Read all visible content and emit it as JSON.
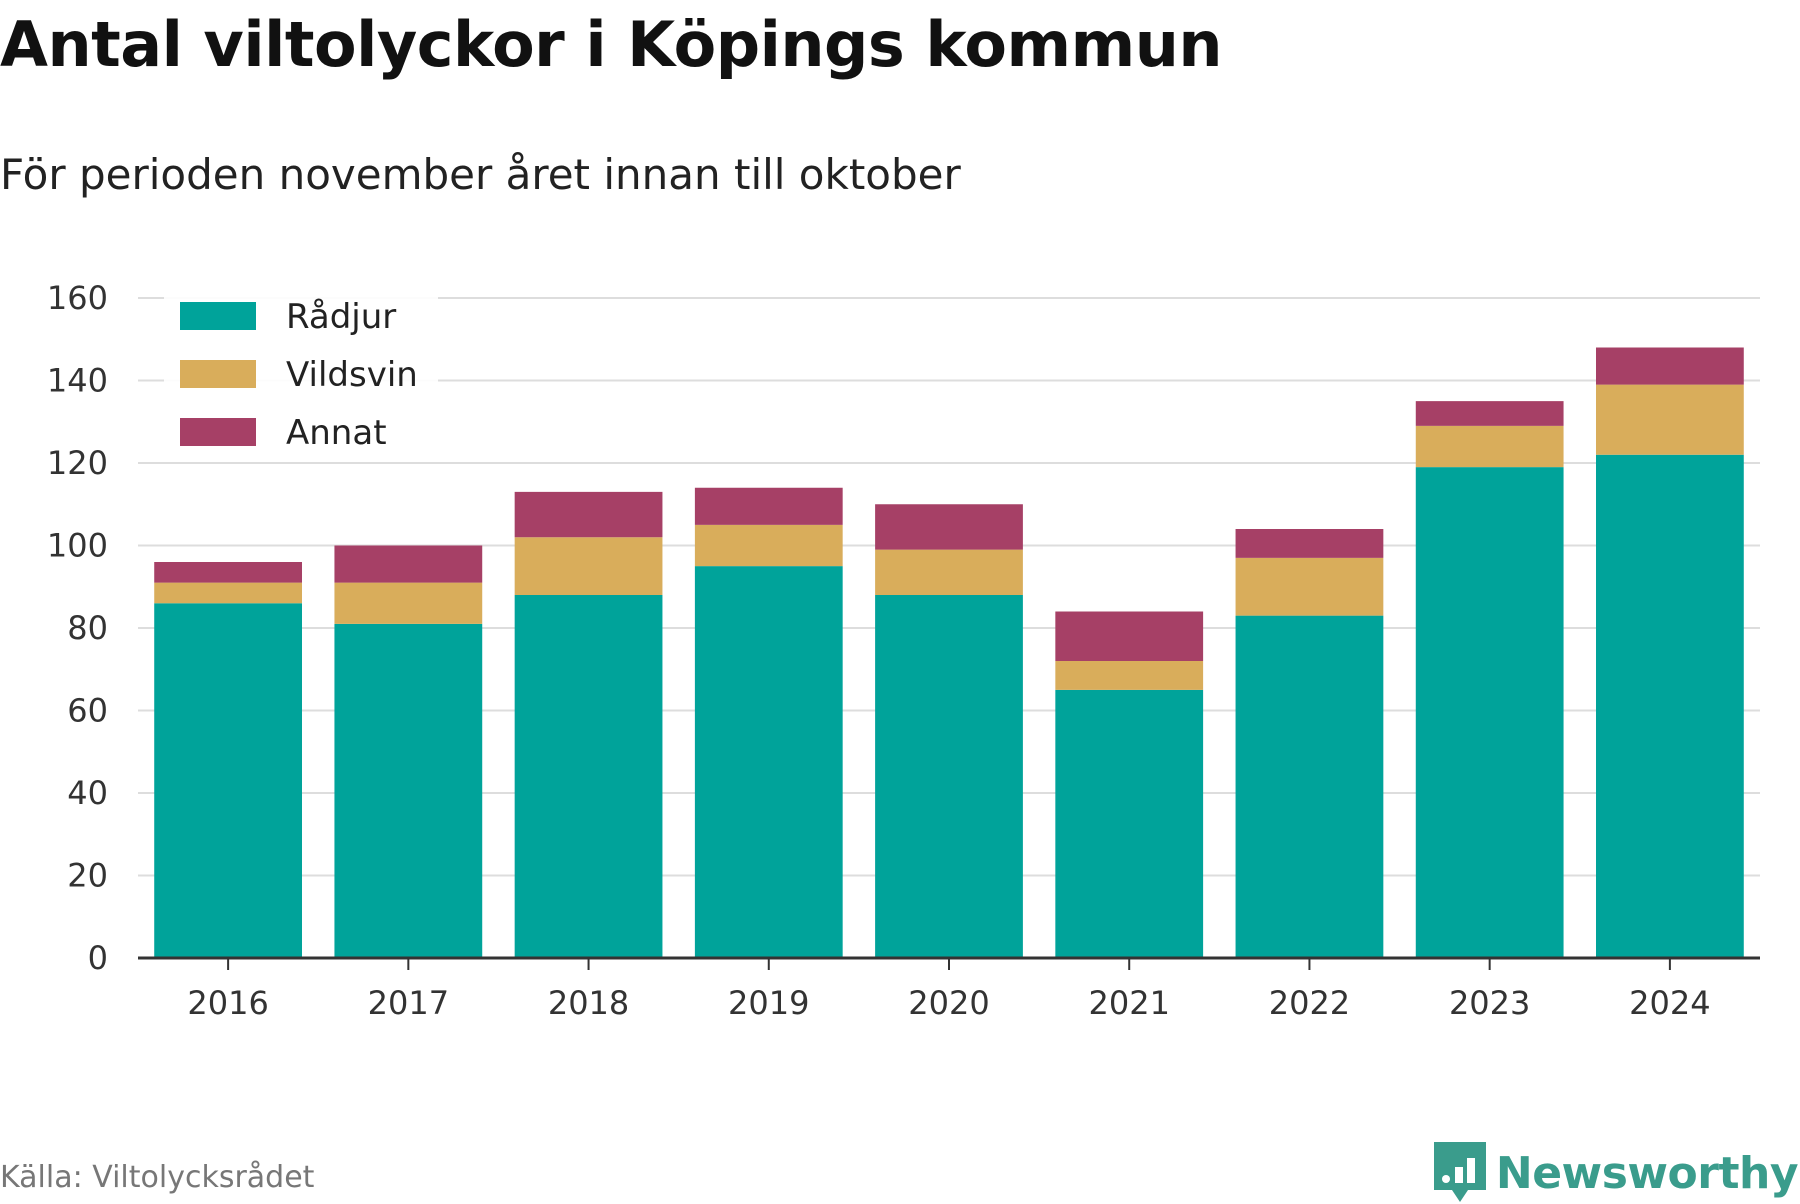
{
  "header": {
    "title": "Antal viltolyckor i Köpings kommun",
    "subtitle": "För perioden november året innan till oktober"
  },
  "footer": {
    "source": "Källa: Viltolycksrådet",
    "brand": "Newsworthy",
    "brand_icon": "bar-chart-icon"
  },
  "chart_data": {
    "type": "bar",
    "stacked": true,
    "categories": [
      "2016",
      "2017",
      "2018",
      "2019",
      "2020",
      "2021",
      "2022",
      "2023",
      "2024"
    ],
    "series": [
      {
        "name": "Rådjur",
        "color": "#00a39a",
        "values": [
          86,
          81,
          88,
          95,
          88,
          65,
          83,
          119,
          122
        ]
      },
      {
        "name": "Vildsvin",
        "color": "#d9ad5b",
        "values": [
          5,
          10,
          14,
          10,
          11,
          7,
          14,
          10,
          17
        ]
      },
      {
        "name": "Annat",
        "color": "#a64066",
        "values": [
          5,
          9,
          11,
          9,
          11,
          12,
          7,
          6,
          9
        ]
      }
    ],
    "ylim": [
      0,
      160
    ],
    "yticks": [
      0,
      20,
      40,
      60,
      80,
      100,
      120,
      140,
      160
    ],
    "grid": true,
    "legend_position": "top-left"
  }
}
